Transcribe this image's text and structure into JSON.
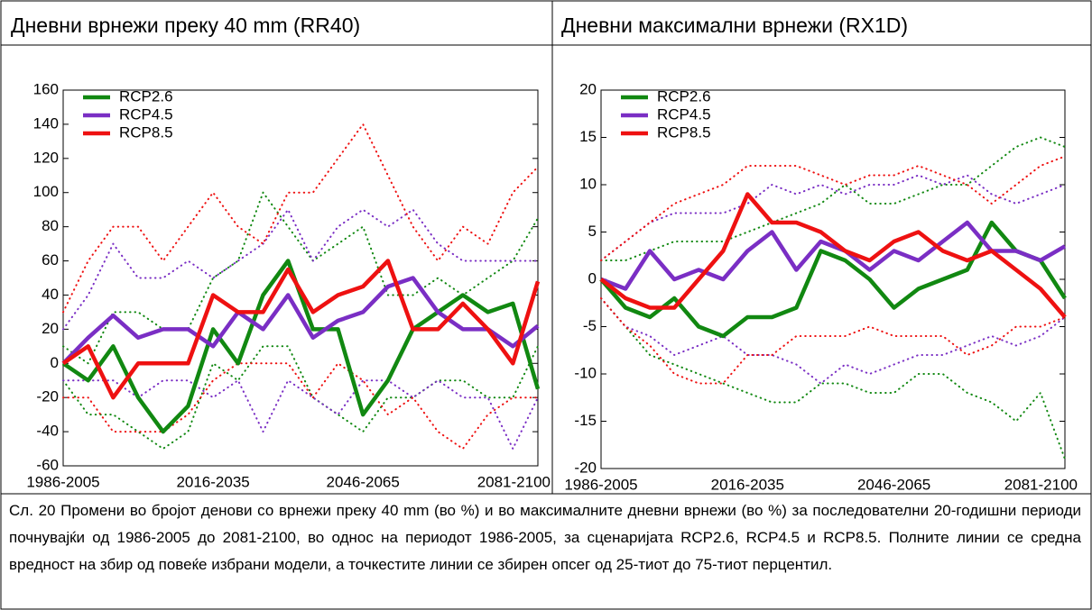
{
  "chart_data": [
    {
      "type": "line",
      "title": "Дневни врнежи преку 40 mm (RR40)",
      "categories": [
        "1986-2005",
        null,
        null,
        null,
        null,
        null,
        "2016-2035",
        null,
        null,
        null,
        null,
        null,
        "2046-2065",
        null,
        null,
        null,
        null,
        null,
        null,
        "2081-2100"
      ],
      "ylim": [
        -60,
        160
      ],
      "yticks": [
        -60,
        -40,
        -20,
        0,
        20,
        40,
        60,
        80,
        100,
        120,
        140,
        160
      ],
      "legend": "upper left",
      "series": [
        {
          "name": "RCP2.6",
          "color": "#118811",
          "values": [
            0,
            -10,
            10,
            -20,
            -40,
            -25,
            20,
            0,
            40,
            60,
            20,
            20,
            -30,
            -10,
            20,
            30,
            40,
            30,
            35,
            -15
          ],
          "low": [
            -10,
            -30,
            -30,
            -40,
            -50,
            -40,
            0,
            -10,
            10,
            10,
            -20,
            -30,
            -40,
            -20,
            -20,
            -10,
            -10,
            -20,
            -20,
            10
          ],
          "high": [
            10,
            0,
            30,
            30,
            20,
            20,
            50,
            60,
            100,
            80,
            60,
            70,
            80,
            40,
            40,
            50,
            40,
            50,
            60,
            85
          ]
        },
        {
          "name": "RCP4.5",
          "color": "#7a2ec4",
          "values": [
            0,
            15,
            28,
            15,
            20,
            20,
            10,
            30,
            20,
            40,
            15,
            25,
            30,
            45,
            50,
            30,
            20,
            20,
            10,
            22
          ],
          "low": [
            -10,
            -10,
            -10,
            -20,
            -10,
            -10,
            -20,
            -10,
            -40,
            -10,
            -20,
            -30,
            -10,
            -10,
            -20,
            -10,
            -20,
            -20,
            -50,
            -20
          ],
          "high": [
            20,
            40,
            70,
            50,
            50,
            60,
            50,
            60,
            70,
            90,
            60,
            80,
            90,
            80,
            90,
            70,
            60,
            60,
            60,
            60
          ]
        },
        {
          "name": "RCP8.5",
          "color": "#ee1111",
          "values": [
            0,
            10,
            -20,
            0,
            0,
            0,
            40,
            30,
            30,
            55,
            30,
            40,
            45,
            60,
            20,
            20,
            35,
            20,
            0,
            48
          ],
          "low": [
            -20,
            -20,
            -40,
            -40,
            -40,
            -30,
            -10,
            0,
            0,
            0,
            -20,
            0,
            -10,
            -30,
            -20,
            -40,
            -50,
            -30,
            -20,
            -20
          ],
          "high": [
            30,
            60,
            80,
            80,
            60,
            80,
            100,
            80,
            70,
            100,
            100,
            120,
            140,
            110,
            80,
            60,
            80,
            70,
            100,
            115
          ]
        }
      ]
    },
    {
      "type": "line",
      "title": "Дневни максимални врнежи (RX1D)",
      "categories": [
        "1986-2005",
        null,
        null,
        null,
        null,
        null,
        "2016-2035",
        null,
        null,
        null,
        null,
        null,
        "2046-2065",
        null,
        null,
        null,
        null,
        null,
        null,
        "2081-2100"
      ],
      "ylim": [
        -20,
        20
      ],
      "yticks": [
        -20,
        -15,
        -10,
        -5,
        0,
        5,
        10,
        15,
        20
      ],
      "legend": "upper left",
      "series": [
        {
          "name": "RCP2.6",
          "color": "#118811",
          "values": [
            0,
            -3,
            -4,
            -2,
            -5,
            -6,
            -4,
            -4,
            -3,
            3,
            2,
            0,
            -3,
            -1,
            0,
            1,
            6,
            3,
            2,
            -2
          ],
          "low": [
            -2,
            -5,
            -8,
            -9,
            -10,
            -11,
            -12,
            -13,
            -13,
            -11,
            -11,
            -12,
            -12,
            -10,
            -10,
            -12,
            -13,
            -15,
            -12,
            -19
          ],
          "high": [
            2,
            2,
            3,
            4,
            4,
            4,
            5,
            6,
            7,
            8,
            10,
            8,
            8,
            9,
            10,
            10,
            12,
            14,
            15,
            14
          ]
        },
        {
          "name": "RCP4.5",
          "color": "#7a2ec4",
          "values": [
            0,
            -1,
            3,
            0,
            1,
            0,
            3,
            5,
            1,
            4,
            3,
            1,
            3,
            2,
            4,
            6,
            3,
            3,
            2,
            3.5
          ],
          "low": [
            -2,
            -5,
            -6,
            -8,
            -7,
            -6,
            -8,
            -8,
            -9,
            -11,
            -9,
            -10,
            -9,
            -8,
            -8,
            -7,
            -6,
            -7,
            -6,
            -4
          ],
          "high": [
            2,
            4,
            6,
            7,
            7,
            7,
            8,
            10,
            9,
            10,
            9,
            10,
            10,
            11,
            10,
            11,
            9,
            8,
            9,
            10
          ]
        },
        {
          "name": "RCP8.5",
          "color": "#ee1111",
          "values": [
            0,
            -2,
            -3,
            -3,
            0,
            3,
            9,
            6,
            6,
            5,
            3,
            2,
            4,
            5,
            3,
            2,
            3,
            1,
            -1,
            -4
          ],
          "low": [
            -2,
            -5,
            -7,
            -10,
            -11,
            -11,
            -8,
            -8,
            -6,
            -6,
            -6,
            -5,
            -6,
            -6,
            -6,
            -8,
            -7,
            -5,
            -5,
            -4
          ],
          "high": [
            2,
            4,
            6,
            8,
            9,
            10,
            12,
            12,
            12,
            11,
            10,
            11,
            11,
            12,
            11,
            10,
            8,
            10,
            12,
            13
          ]
        }
      ]
    }
  ],
  "caption": "Сл. 20 Промени во бројот денови со врнежи преку 40 mm (во %) и во максималните дневни врнежи (во %) за последователни 20-годишни периоди почнувајќи од 1986-2005 до 2081-2100, во однос на периодот 1986-2005, за сценаријата RCP2.6, RCP4.5 и RCP8.5. Полните линии се средна вредност на збир од повеќе избрани модели, а точкестите линии се збирен опсег од 25-тиот до 75-тиот перцентил."
}
